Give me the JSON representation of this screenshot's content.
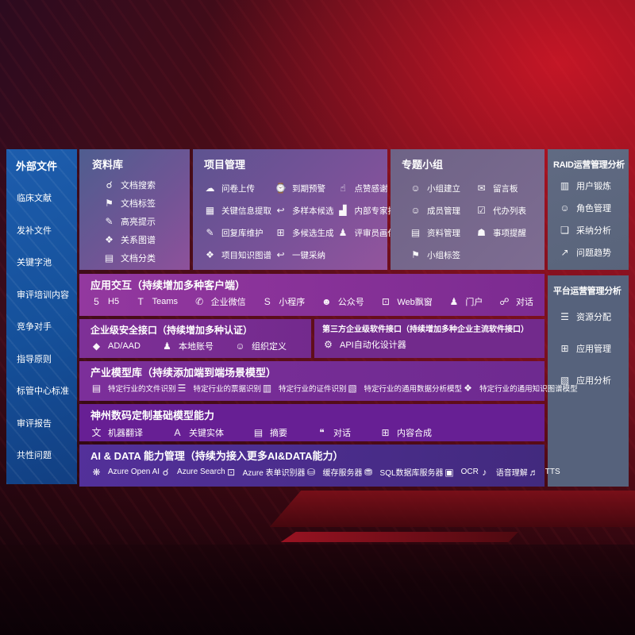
{
  "colors": {
    "background_red": "#8e1322",
    "sidebar_blue": "#1a5aa6",
    "purple_band": "#7b2f93",
    "indigo_band": "#4b2b8a",
    "slate_panel": "#5d6679"
  },
  "sidebar": {
    "title": "外部文件",
    "items": [
      {
        "label": "临床文献"
      },
      {
        "label": "发补文件"
      },
      {
        "label": "关键字池"
      },
      {
        "label": "审评培训内容"
      },
      {
        "label": "竞争对手"
      },
      {
        "label": "指导原则"
      },
      {
        "label": "标管中心标准"
      },
      {
        "label": "审评报告"
      },
      {
        "label": "共性问题"
      }
    ]
  },
  "panels": {
    "repository": {
      "title": "资料库",
      "items": [
        {
          "icon": "doc-search-icon",
          "label": "文档搜索"
        },
        {
          "icon": "doc-tag-icon",
          "label": "文档标签"
        },
        {
          "icon": "highlight-pencil-icon",
          "label": "高亮提示"
        },
        {
          "icon": "relation-graph-icon",
          "label": "关系图谱"
        },
        {
          "icon": "doc-classify-icon",
          "label": "文档分类"
        }
      ]
    },
    "project": {
      "title": "项目管理",
      "items": [
        {
          "icon": "cloud-upload-icon",
          "label": "问卷上传"
        },
        {
          "icon": "info-extract-icon",
          "label": "关键信息提取"
        },
        {
          "icon": "reply-maintain-icon",
          "label": "回复库维护"
        },
        {
          "icon": "knowledge-graph-icon",
          "label": "项目知识图谱"
        },
        {
          "icon": "due-alarm-icon",
          "label": "到期预警"
        },
        {
          "icon": "multi-sample-icon",
          "label": "多样本候选"
        },
        {
          "icon": "multi-candidate-icon",
          "label": "多候选生成"
        },
        {
          "icon": "one-click-adopt-icon",
          "label": "一键采纳"
        },
        {
          "icon": "thumbs-up-icon",
          "label": "点赞感谢"
        },
        {
          "icon": "expert-ranking-icon",
          "label": "内部专家排名"
        },
        {
          "icon": "reviewer-profile-icon",
          "label": "评审员画像"
        }
      ]
    },
    "groups": {
      "title": "专题小组",
      "items": [
        {
          "icon": "group-create-icon",
          "label": "小组建立"
        },
        {
          "icon": "member-manage-icon",
          "label": "成员管理"
        },
        {
          "icon": "material-manage-icon",
          "label": "资料管理"
        },
        {
          "icon": "group-tag-icon",
          "label": "小组标签"
        },
        {
          "icon": "message-board-icon",
          "label": "留言板"
        },
        {
          "icon": "todo-list-icon",
          "label": "代办列表"
        },
        {
          "icon": "reminder-bell-icon",
          "label": "事项提醒"
        }
      ]
    },
    "raid": {
      "title": "RAID运营管理分析",
      "items": [
        {
          "icon": "user-card-icon",
          "label": "用户锻炼"
        },
        {
          "icon": "role-manage-icon",
          "label": "角色管理"
        },
        {
          "icon": "adoption-analysis-icon",
          "label": "采纳分析"
        },
        {
          "icon": "issue-trend-icon",
          "label": "问题趋势"
        }
      ]
    },
    "platform": {
      "title": "平台运营管理分析",
      "items": [
        {
          "icon": "resource-allocation-icon",
          "label": "资源分配"
        },
        {
          "icon": "app-manage-icon",
          "label": "应用管理"
        },
        {
          "icon": "app-analysis-icon",
          "label": "应用分析"
        }
      ]
    }
  },
  "rows": {
    "interaction": {
      "title": "应用交互（持续增加多种客户端）",
      "items": [
        {
          "icon": "h5-icon",
          "label": "H5"
        },
        {
          "icon": "teams-icon",
          "label": "Teams"
        },
        {
          "icon": "wechat-work-icon",
          "label": "企业微信"
        },
        {
          "icon": "miniprogram-icon",
          "label": "小程序"
        },
        {
          "icon": "official-account-icon",
          "label": "公众号"
        },
        {
          "icon": "web-popup-icon",
          "label": "Web飘窗"
        },
        {
          "icon": "portal-icon",
          "label": "门户"
        },
        {
          "icon": "dialog-icon",
          "label": "对话"
        }
      ]
    },
    "security": {
      "title": "企业级安全接口（持续增加多种认证）",
      "items": [
        {
          "icon": "ad-aad-shield-icon",
          "label": "AD/AAD"
        },
        {
          "icon": "local-account-icon",
          "label": "本地账号"
        },
        {
          "icon": "org-define-icon",
          "label": "组织定义"
        }
      ]
    },
    "thirdparty": {
      "title": "第三方企业级软件接口（持续增加多种企业主流软件接口）",
      "items": [
        {
          "icon": "api-designer-gear-icon",
          "label": "API自动化设计器"
        }
      ]
    },
    "industry": {
      "title": "产业模型库（持续添加端到端场景模型）",
      "items": [
        {
          "icon": "industry-doc-icon",
          "label": "特定行业的文件识别"
        },
        {
          "icon": "industry-receipt-icon",
          "label": "特定行业的票据识别"
        },
        {
          "icon": "industry-idcard-icon",
          "label": "特定行业的证件识别"
        },
        {
          "icon": "industry-data-model-icon",
          "label": "特定行业的通用数据分析模型"
        },
        {
          "icon": "industry-knowledge-graph-icon",
          "label": "特定行业的通用知识图谱模型"
        }
      ]
    },
    "basemodel": {
      "title": "神州数码定制基础模型能力",
      "items": [
        {
          "icon": "machine-translate-icon",
          "label": "机器翻译"
        },
        {
          "icon": "key-entity-icon",
          "label": "关键实体"
        },
        {
          "icon": "summary-doc-icon",
          "label": "摘要"
        },
        {
          "icon": "dialog-bubble-icon",
          "label": "对话"
        },
        {
          "icon": "content-synthesis-icon",
          "label": "内容合成"
        }
      ]
    },
    "aidata": {
      "title": "AI & DATA 能力管理（持续为接入更多AI&DATA能力）",
      "items": [
        {
          "icon": "openai-icon",
          "label": "Azure Open AI"
        },
        {
          "icon": "azure-search-icon",
          "label": "Azure Search"
        },
        {
          "icon": "form-recognizer-icon",
          "label": "Azure 表单识别器"
        },
        {
          "icon": "cache-server-icon",
          "label": "缓存服务器"
        },
        {
          "icon": "sql-database-icon",
          "label": "SQL数据库服务器"
        },
        {
          "icon": "ocr-icon",
          "label": "OCR"
        },
        {
          "icon": "speech-understanding-icon",
          "label": "语音理解"
        },
        {
          "icon": "tts-icon",
          "label": "TTS"
        }
      ]
    }
  }
}
